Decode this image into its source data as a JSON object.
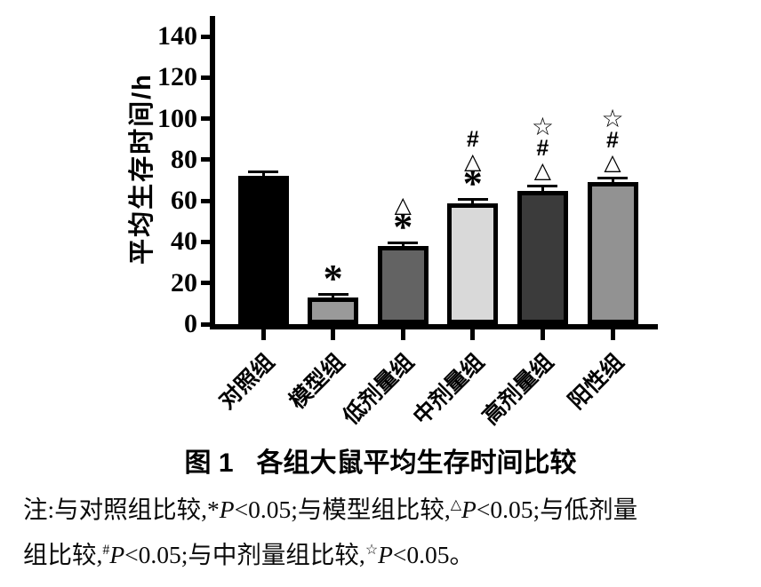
{
  "page": {
    "bg": "#ffffff"
  },
  "chart_data": {
    "type": "bar",
    "title": "图1 各组大鼠平均生存时间比较",
    "categories": [
      "对照组",
      "模型组",
      "低剂量组",
      "中剂量组",
      "高剂量组",
      "阳性组"
    ],
    "values": [
      72,
      13,
      38,
      59,
      65,
      69
    ],
    "errors": [
      1.5,
      1,
      1,
      1,
      1.5,
      1.5
    ],
    "bar_colors": [
      "#000000",
      "#9a9a9a",
      "#636363",
      "#d9d9d9",
      "#3b3b3b",
      "#929292"
    ],
    "bar_border_color": "#000000",
    "annotations": [
      [],
      [
        "*"
      ],
      [
        "△",
        "*"
      ],
      [
        "#",
        "△",
        "*"
      ],
      [
        "☆",
        "#",
        "△"
      ],
      [
        "☆",
        "#",
        "△"
      ]
    ],
    "ylabel": "平均生存时间/h",
    "xlabel": "",
    "ylim": [
      0,
      150
    ],
    "yticks": [
      0,
      20,
      40,
      60,
      80,
      100,
      120,
      140
    ],
    "grid": false,
    "legend": false,
    "axis_color": "#000000"
  },
  "caption": {
    "prefix": "图 1",
    "text": "各组大鼠平均生存时间比较"
  },
  "note": {
    "lines": [
      [
        {
          "t": "注:与对照组比较,"
        },
        {
          "t": "*"
        },
        {
          "t": "P",
          "s": "it"
        },
        {
          "t": "<0.05;与模型组比较,"
        },
        {
          "t": "△",
          "s": "sup"
        },
        {
          "t": "P",
          "s": "it"
        },
        {
          "t": "<0.05;与低剂量"
        }
      ],
      [
        {
          "t": "组比较,"
        },
        {
          "t": "#",
          "s": "sup"
        },
        {
          "t": "P",
          "s": "it"
        },
        {
          "t": "<0.05;与中剂量组比较,"
        },
        {
          "t": "☆",
          "s": "sup"
        },
        {
          "t": "P",
          "s": "it"
        },
        {
          "t": "<0.05。"
        }
      ]
    ]
  }
}
